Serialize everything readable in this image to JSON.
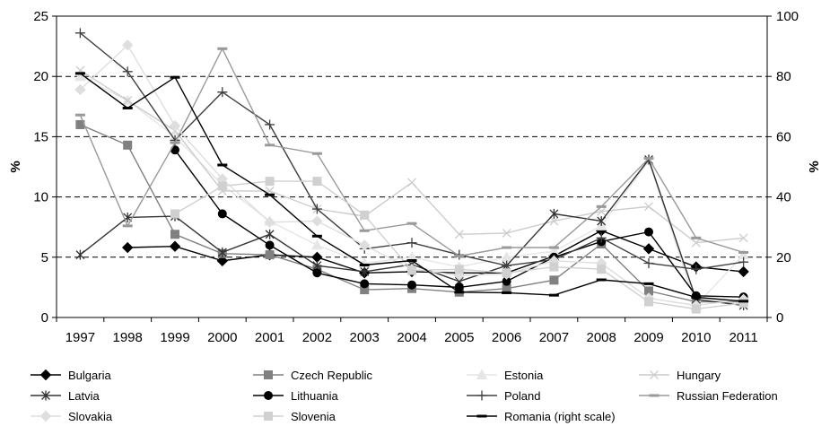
{
  "chart_data": {
    "type": "line",
    "title": "",
    "left_axis": {
      "label": "%",
      "ylim": [
        0,
        25
      ],
      "ticks": [
        "0",
        "5",
        "10",
        "15",
        "20",
        "25"
      ]
    },
    "right_axis": {
      "label": "%",
      "ylim": [
        0,
        100
      ],
      "ticks": [
        "0",
        "20",
        "40",
        "60",
        "80",
        "100"
      ]
    },
    "categories": [
      "1997",
      "1998",
      "1999",
      "2000",
      "2001",
      "2002",
      "2003",
      "2004",
      "2005",
      "2006",
      "2007",
      "2008",
      "2009",
      "2010",
      "2011"
    ],
    "grid": "horizontal dashed at left-axis 5, 10, 15, 20",
    "legend_position": "bottom",
    "series": [
      {
        "name": "Bulgaria",
        "axis": "left",
        "color": "#000000",
        "marker": "diamond",
        "values": [
          null,
          5.8,
          5.9,
          4.7,
          5.2,
          5.0,
          3.7,
          3.8,
          3.7,
          3.7,
          5.1,
          7.2,
          5.7,
          4.2,
          3.8
        ]
      },
      {
        "name": "Czech Republic",
        "axis": "left",
        "color": "#808080",
        "marker": "square",
        "values": [
          16.0,
          14.3,
          6.9,
          5.3,
          5.2,
          4.0,
          2.3,
          2.4,
          2.1,
          2.4,
          3.1,
          6.1,
          2.2,
          1.3,
          1.3
        ]
      },
      {
        "name": "Estonia",
        "axis": "left",
        "color": "#e6e6e6",
        "marker": "triangle",
        "values": [
          20.0,
          18.0,
          15.0,
          11.0,
          8.0,
          6.0,
          4.5,
          5.0,
          4.2,
          5.0,
          5.5,
          7.6,
          13.0,
          1.0,
          5.2
        ]
      },
      {
        "name": "Hungary",
        "axis": "left",
        "color": "#cccccc",
        "marker": "x",
        "values": [
          20.5,
          18.0,
          15.5,
          10.5,
          10.5,
          9.0,
          8.4,
          11.2,
          6.9,
          7.0,
          8.0,
          8.8,
          9.2,
          6.2,
          6.6
        ]
      },
      {
        "name": "Latvia",
        "axis": "left",
        "color": "#333333",
        "marker": "asterisk",
        "values": [
          5.2,
          8.3,
          8.4,
          5.4,
          6.9,
          4.3,
          3.8,
          4.4,
          3.0,
          4.3,
          8.6,
          8.0,
          13.1,
          1.5,
          1.0
        ]
      },
      {
        "name": "Lithuania",
        "axis": "left",
        "color": "#000000",
        "marker": "circle",
        "values": [
          null,
          null,
          13.9,
          8.6,
          6.0,
          3.7,
          2.8,
          2.7,
          2.5,
          3.0,
          5.0,
          6.3,
          7.1,
          1.8,
          1.7
        ]
      },
      {
        "name": "Poland",
        "axis": "left",
        "color": "#404040",
        "marker": "plus",
        "values": [
          23.6,
          20.4,
          14.7,
          18.7,
          16.0,
          9.0,
          5.7,
          6.2,
          5.2,
          4.3,
          4.8,
          6.6,
          4.5,
          4.0,
          4.6
        ]
      },
      {
        "name": "Russian Federation",
        "axis": "left",
        "color": "#999999",
        "marker": "dash",
        "values": [
          16.8,
          7.6,
          14.5,
          22.3,
          14.3,
          13.6,
          7.2,
          7.8,
          5.1,
          5.8,
          5.8,
          9.2,
          13.2,
          6.6,
          5.4
        ]
      },
      {
        "name": "Slovakia",
        "axis": "left",
        "color": "#dedede",
        "marker": "diamond",
        "values": [
          18.9,
          22.6,
          15.9,
          11.5,
          7.9,
          8.0,
          6.0,
          4.0,
          3.5,
          3.6,
          4.7,
          4.5,
          1.6,
          1.0,
          1.5
        ]
      },
      {
        "name": "Slovenia",
        "axis": "left",
        "color": "#d0d0d0",
        "marker": "square",
        "values": [
          null,
          null,
          8.6,
          10.9,
          11.3,
          11.3,
          8.5,
          3.9,
          4.0,
          3.7,
          4.2,
          4.0,
          1.3,
          0.7,
          1.2
        ]
      },
      {
        "name": "Romania (right scale)",
        "axis": "right",
        "color": "#000000",
        "marker": "dash",
        "values": [
          81.0,
          69.5,
          79.7,
          50.6,
          40.7,
          27.0,
          17.4,
          18.9,
          8.4,
          8.2,
          7.4,
          12.5,
          11.2,
          6.7,
          5.4
        ]
      }
    ]
  }
}
